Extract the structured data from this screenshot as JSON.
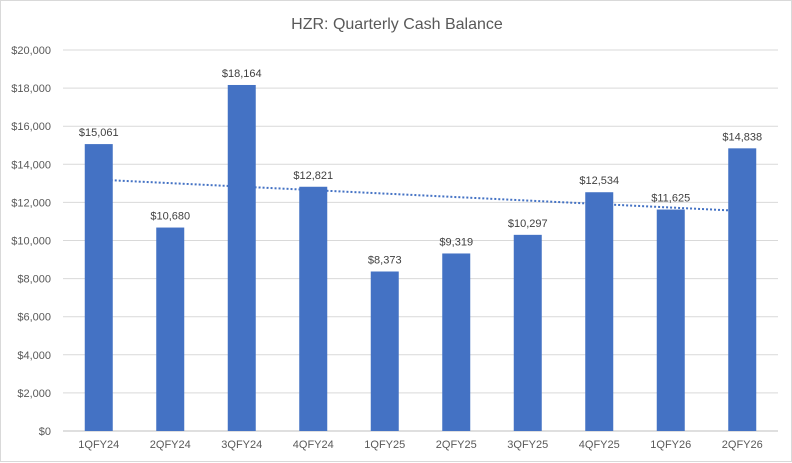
{
  "chart_data": {
    "type": "bar",
    "title": "HZR: Quarterly Cash Balance",
    "xlabel": "",
    "ylabel": "",
    "categories": [
      "1QFY24",
      "2QFY24",
      "3QFY24",
      "4QFY24",
      "1QFY25",
      "2QFY25",
      "3QFY25",
      "4QFY25",
      "1QFY26",
      "2QFY26"
    ],
    "values": [
      15061,
      10680,
      18164,
      12821,
      8373,
      9319,
      10297,
      12534,
      11625,
      14838
    ],
    "data_labels": [
      "$15,061",
      "$10,680",
      "$18,164",
      "$12,821",
      "$8,373",
      "$9,319",
      "$10,297",
      "$12,534",
      "$11,625",
      "$14,838"
    ],
    "ylim": [
      0,
      20000
    ],
    "yticks": [
      0,
      2000,
      4000,
      6000,
      8000,
      10000,
      12000,
      14000,
      16000,
      18000,
      20000
    ],
    "ytick_labels": [
      "$0",
      "$2,000",
      "$4,000",
      "$6,000",
      "$8,000",
      "$10,000",
      "$12,000",
      "$14,000",
      "$16,000",
      "$18,000",
      "$20,000"
    ],
    "grid": true,
    "trendline": "linear, dotted",
    "colors": {
      "bar": "#4472C4",
      "trend": "#4472C4",
      "grid": "#d9d9d9"
    }
  }
}
